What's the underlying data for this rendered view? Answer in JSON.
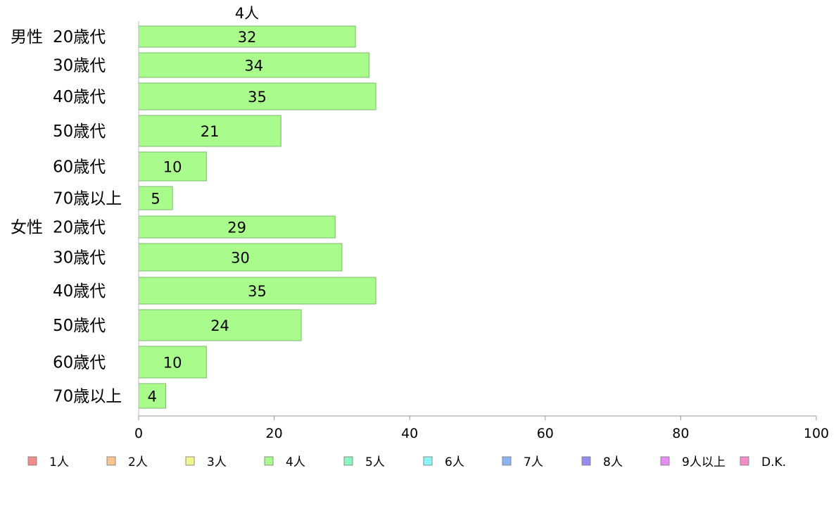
{
  "chart_data": {
    "type": "bar",
    "orientation": "horizontal",
    "series_header": "4人",
    "groups": [
      {
        "name": "男性",
        "categories": [
          "20歳代",
          "30歳代",
          "40歳代",
          "50歳代",
          "60歳代",
          "70歳以上"
        ],
        "values": [
          32,
          34,
          35,
          21,
          10,
          5
        ]
      },
      {
        "name": "女性",
        "categories": [
          "20歳代",
          "30歳代",
          "40歳代",
          "50歳代",
          "60歳代",
          "70歳以上"
        ],
        "values": [
          29,
          30,
          35,
          24,
          10,
          4
        ]
      }
    ],
    "xlim": [
      0,
      100
    ],
    "xticks": [
      "0",
      "20",
      "40",
      "60",
      "80",
      "100"
    ],
    "grid": false,
    "legend_position": "bottom",
    "legend": [
      {
        "label": "1人",
        "color": "#f28b8b"
      },
      {
        "label": "2人",
        "color": "#f8c58c"
      },
      {
        "label": "3人",
        "color": "#eef58c"
      },
      {
        "label": "4人",
        "color": "#a9fb8c"
      },
      {
        "label": "5人",
        "color": "#8cf5c0"
      },
      {
        "label": "6人",
        "color": "#8cf6f6"
      },
      {
        "label": "7人",
        "color": "#8cb4f2"
      },
      {
        "label": "8人",
        "color": "#958cf0"
      },
      {
        "label": "9人以上",
        "color": "#e88cf5"
      },
      {
        "label": "D.K.",
        "color": "#f48cc7"
      }
    ],
    "bar_color": "#a9fb8c"
  }
}
